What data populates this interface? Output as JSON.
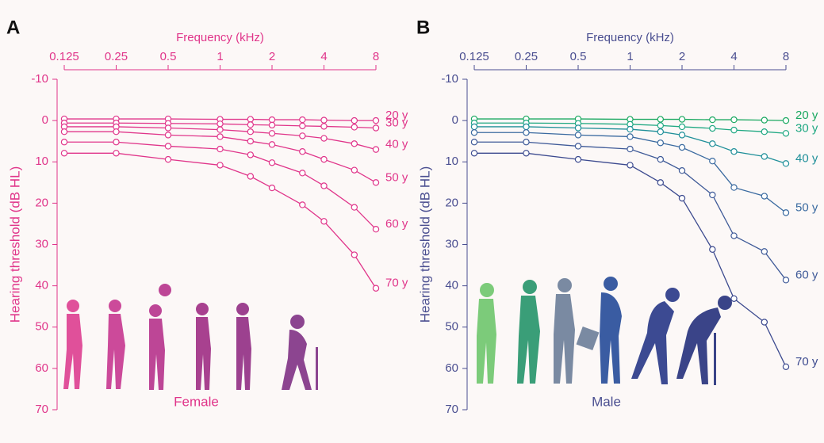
{
  "chart_data": [
    {
      "type": "line",
      "panel": "A",
      "title": "Female",
      "xlabel": "Frequency (kHz)",
      "ylabel": "Hearing threshold (dB HL)",
      "axis_color": "#e0358a",
      "xscale": "log",
      "yaxis_inverted": true,
      "x": [
        0.125,
        0.25,
        0.5,
        1,
        1.5,
        2,
        3,
        4,
        6,
        8
      ],
      "xlim": [
        0.125,
        8
      ],
      "xticks": [
        0.125,
        0.25,
        0.5,
        1,
        2,
        4,
        8
      ],
      "ylim": [
        -10,
        70
      ],
      "yticks": [
        -10,
        0,
        10,
        20,
        30,
        40,
        50,
        60,
        70
      ],
      "series": [
        {
          "name": "20 y",
          "color": "#e0358a",
          "values": [
            -0.4,
            -0.4,
            -0.4,
            -0.3,
            -0.3,
            -0.2,
            -0.2,
            -0.1,
            0,
            0
          ]
        },
        {
          "name": "30 y",
          "color": "#e0358a",
          "values": [
            0.6,
            0.6,
            0.7,
            0.8,
            1,
            1.1,
            1.3,
            1.4,
            1.6,
            1.8
          ]
        },
        {
          "name": "40 y",
          "color": "#e0358a",
          "values": [
            1.5,
            1.5,
            1.8,
            2.2,
            2.7,
            3.1,
            3.7,
            4.3,
            5.6,
            7
          ]
        },
        {
          "name": "50 y",
          "color": "#e0358a",
          "values": [
            2.7,
            2.7,
            3.5,
            3.9,
            5,
            5.8,
            7.5,
            9.4,
            12,
            15
          ]
        },
        {
          "name": "60 y",
          "color": "#e0358a",
          "values": [
            5.2,
            5.2,
            6.2,
            6.9,
            8.3,
            10.2,
            12.7,
            15.8,
            21,
            26.3
          ]
        },
        {
          "name": "70 y",
          "color": "#e0358a",
          "values": [
            7.9,
            7.9,
            9.4,
            10.8,
            13.5,
            16.3,
            20.4,
            24.4,
            32.5,
            40.6
          ]
        }
      ]
    },
    {
      "type": "line",
      "panel": "B",
      "title": "Male",
      "xlabel": "Frequency (kHz)",
      "ylabel": "Hearing threshold (dB HL)",
      "axis_color": "#4a4e90",
      "xscale": "log",
      "yaxis_inverted": true,
      "x": [
        0.125,
        0.25,
        0.5,
        1,
        1.5,
        2,
        3,
        4,
        6,
        8
      ],
      "xlim": [
        0.125,
        8
      ],
      "xticks": [
        0.125,
        0.25,
        0.5,
        1,
        2,
        4,
        8
      ],
      "ylim": [
        -10,
        70
      ],
      "yticks": [
        -10,
        0,
        10,
        20,
        30,
        40,
        50,
        60,
        70
      ],
      "series": [
        {
          "name": "20 y",
          "color": "#1aa860",
          "values": [
            -0.4,
            -0.4,
            -0.4,
            -0.3,
            -0.3,
            -0.3,
            -0.2,
            -0.2,
            -0.1,
            0
          ]
        },
        {
          "name": "30 y",
          "color": "#1fa882",
          "values": [
            0.6,
            0.6,
            0.7,
            0.9,
            1.2,
            1.5,
            1.9,
            2.3,
            2.7,
            3.1
          ]
        },
        {
          "name": "40 y",
          "color": "#1f8f99",
          "values": [
            1.5,
            1.5,
            1.8,
            2.1,
            2.7,
            3.5,
            5.6,
            7.5,
            8.7,
            10.4
          ]
        },
        {
          "name": "50 y",
          "color": "#3a6aa0",
          "values": [
            2.9,
            2.9,
            3.5,
            3.9,
            5.4,
            6.5,
            9.8,
            16.2,
            18.3,
            22.3
          ]
        },
        {
          "name": "60 y",
          "color": "#3f5a98",
          "values": [
            5.2,
            5.2,
            6.2,
            6.9,
            9.4,
            12.1,
            18,
            27.9,
            31.7,
            38.6
          ]
        },
        {
          "name": "70 y",
          "color": "#3c4a8f",
          "values": [
            7.9,
            7.9,
            9.4,
            10.8,
            15,
            18.8,
            31.2,
            43.1,
            48.8,
            59.6
          ]
        }
      ]
    }
  ]
}
